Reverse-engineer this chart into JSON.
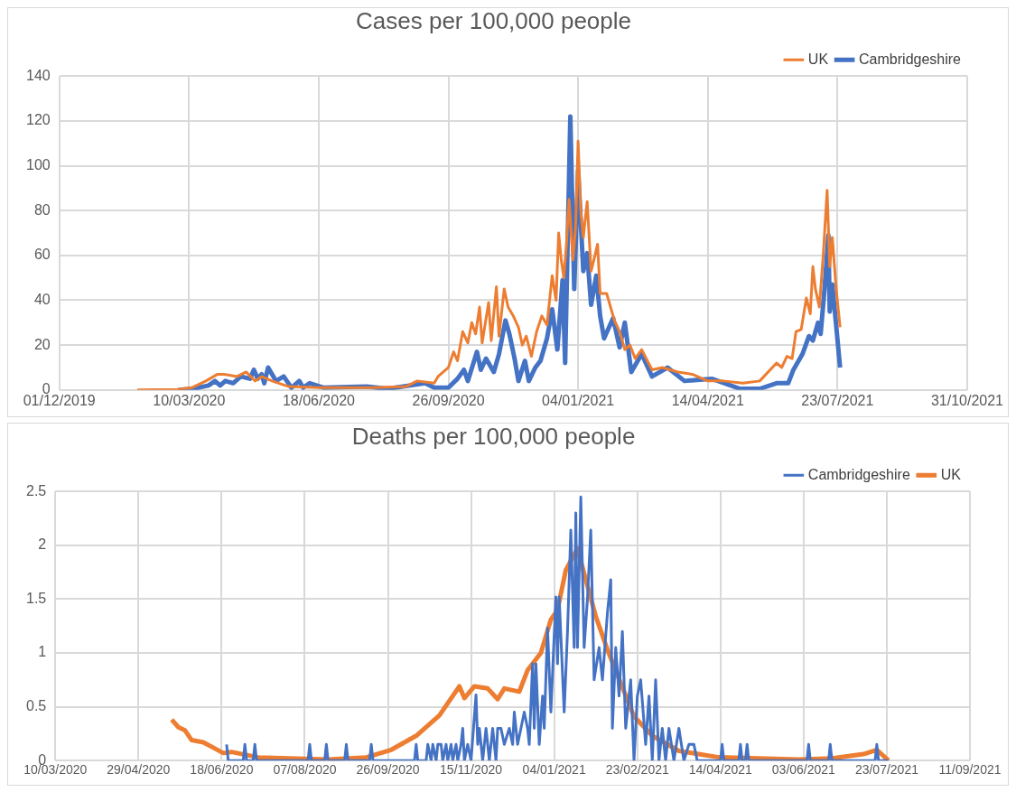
{
  "chart_data": [
    {
      "type": "line",
      "title": "Cases per 100,000 people",
      "legend": "top right",
      "grid": true,
      "marker": "none",
      "line_style": "solid",
      "xlim": [
        "2019-12-01",
        "2021-10-31"
      ],
      "xticks": [
        {
          "value": "2019-12-01",
          "label": "01/12/2019"
        },
        {
          "value": "2020-03-10",
          "label": "10/03/2020"
        },
        {
          "value": "2020-06-18",
          "label": "18/06/2020"
        },
        {
          "value": "2020-09-26",
          "label": "26/09/2020"
        },
        {
          "value": "2021-01-04",
          "label": "04/01/2021"
        },
        {
          "value": "2021-04-14",
          "label": "14/04/2021"
        },
        {
          "value": "2021-07-23",
          "label": "23/07/2021"
        },
        {
          "value": "2021-10-31",
          "label": "31/10/2021"
        }
      ],
      "ylim": [
        0,
        140
      ],
      "yticks": [
        0,
        20,
        40,
        60,
        80,
        100,
        120,
        140
      ],
      "series": [
        {
          "name": "UK",
          "color": "#ed7d31",
          "x": [
            "2020-01-30",
            "2020-03-01",
            "2020-03-12",
            "2020-03-23",
            "2020-04-01",
            "2020-04-06",
            "2020-04-16",
            "2020-04-23",
            "2020-04-30",
            "2020-05-05",
            "2020-05-13",
            "2020-05-26",
            "2020-06-19",
            "2020-07-30",
            "2020-08-24",
            "2020-09-02",
            "2020-09-15",
            "2020-09-18",
            "2020-09-26",
            "2020-09-30",
            "2020-10-03",
            "2020-10-07",
            "2020-10-11",
            "2020-10-14",
            "2020-10-17",
            "2020-10-20",
            "2020-10-22",
            "2020-10-27",
            "2020-10-29",
            "2020-11-02",
            "2020-11-04",
            "2020-11-08",
            "2020-11-11",
            "2020-11-15",
            "2020-11-19",
            "2020-11-22",
            "2020-11-25",
            "2020-11-29",
            "2020-12-03",
            "2020-12-07",
            "2020-12-11",
            "2020-12-15",
            "2020-12-18",
            "2020-12-20",
            "2020-12-22",
            "2020-12-24",
            "2020-12-26",
            "2020-12-28",
            "2020-12-31",
            "2021-01-02",
            "2021-01-04",
            "2021-01-06",
            "2021-01-08",
            "2021-01-11",
            "2021-01-14",
            "2021-01-17",
            "2021-01-19",
            "2021-01-21",
            "2021-01-26",
            "2021-02-01",
            "2021-02-05",
            "2021-02-09",
            "2021-02-13",
            "2021-02-17",
            "2021-02-22",
            "2021-03-02",
            "2021-03-10",
            "2021-03-22",
            "2021-04-02",
            "2021-04-14",
            "2021-04-26",
            "2021-05-11",
            "2021-05-24",
            "2021-06-06",
            "2021-06-10",
            "2021-06-14",
            "2021-06-18",
            "2021-06-21",
            "2021-06-25",
            "2021-06-29",
            "2021-07-02",
            "2021-07-04",
            "2021-07-06",
            "2021-07-09",
            "2021-07-12",
            "2021-07-15",
            "2021-07-17",
            "2021-07-19",
            "2021-07-22",
            "2021-07-25"
          ],
          "values": [
            0,
            0.2,
            1,
            4,
            7,
            7,
            6,
            8,
            4,
            6,
            4,
            1.5,
            1,
            1,
            1.5,
            4,
            3,
            6,
            10,
            17,
            13,
            26,
            21,
            30,
            25,
            37,
            21,
            39,
            22,
            46,
            24,
            45,
            37,
            33,
            28,
            20,
            24,
            15,
            26,
            33,
            29,
            51,
            40,
            70,
            58,
            50,
            65,
            85,
            58,
            72,
            111,
            80,
            68,
            84,
            53,
            60,
            65,
            43,
            43,
            31,
            26,
            18,
            20,
            14,
            18,
            9,
            10,
            8,
            7,
            4,
            4,
            3,
            4,
            12,
            10,
            15,
            14,
            26,
            27,
            41,
            34,
            55,
            45,
            37,
            60,
            89,
            55,
            68,
            45,
            28
          ]
        },
        {
          "name": "Cambridgeshire",
          "color": "#4472c4",
          "x": [
            "2020-03-02",
            "2020-03-13",
            "2020-03-25",
            "2020-03-30",
            "2020-04-03",
            "2020-04-07",
            "2020-04-13",
            "2020-04-19",
            "2020-04-26",
            "2020-04-29",
            "2020-05-02",
            "2020-05-05",
            "2020-05-07",
            "2020-05-10",
            "2020-05-16",
            "2020-05-22",
            "2020-05-28",
            "2020-06-03",
            "2020-06-06",
            "2020-06-11",
            "2020-06-22",
            "2020-07-25",
            "2020-08-10",
            "2020-09-08",
            "2020-09-15",
            "2020-09-26",
            "2020-10-03",
            "2020-10-08",
            "2020-10-11",
            "2020-10-18",
            "2020-10-21",
            "2020-10-25",
            "2020-10-31",
            "2020-11-04",
            "2020-11-09",
            "2020-11-12",
            "2020-11-16",
            "2020-11-19",
            "2020-11-24",
            "2020-11-27",
            "2020-12-02",
            "2020-12-06",
            "2020-12-11",
            "2020-12-15",
            "2020-12-19",
            "2020-12-23",
            "2020-12-25",
            "2020-12-29",
            "2021-01-01",
            "2021-01-04",
            "2021-01-08",
            "2021-01-11",
            "2021-01-14",
            "2021-01-18",
            "2021-01-21",
            "2021-01-24",
            "2021-01-31",
            "2021-02-05",
            "2021-02-09",
            "2021-02-14",
            "2021-02-22",
            "2021-03-02",
            "2021-03-14",
            "2021-03-27",
            "2021-04-17",
            "2021-05-09",
            "2021-05-24",
            "2021-06-06",
            "2021-06-15",
            "2021-06-19",
            "2021-06-26",
            "2021-07-01",
            "2021-07-04",
            "2021-07-08",
            "2021-07-10",
            "2021-07-13",
            "2021-07-16",
            "2021-07-17",
            "2021-07-19",
            "2021-07-25"
          ],
          "values": [
            0,
            0.5,
            2,
            4,
            2,
            4,
            3,
            6,
            5,
            9,
            5,
            7,
            3,
            10,
            4,
            6,
            1,
            4,
            1,
            3,
            1,
            1.5,
            0.5,
            3,
            1,
            1,
            5,
            9,
            4,
            17,
            9,
            14,
            8,
            16,
            31,
            25,
            14,
            4,
            13,
            4,
            10,
            13,
            23,
            36,
            18,
            49,
            12,
            122,
            45,
            98,
            53,
            61,
            38,
            51,
            33,
            23,
            32,
            19,
            30,
            8,
            16,
            6,
            10,
            4,
            5,
            0.5,
            0.5,
            3,
            3,
            9,
            16,
            24,
            22,
            30,
            25,
            45,
            69,
            35,
            47,
            10
          ]
        }
      ]
    },
    {
      "type": "line",
      "title": "Deaths per 100,000 people",
      "legend": "top right",
      "grid": true,
      "marker": "none",
      "line_style": "solid",
      "xlim": [
        "2020-03-10",
        "2021-09-11"
      ],
      "xticks": [
        {
          "value": "2020-03-10",
          "label": "10/03/2020"
        },
        {
          "value": "2020-04-29",
          "label": "29/04/2020"
        },
        {
          "value": "2020-06-18",
          "label": "18/06/2020"
        },
        {
          "value": "2020-08-07",
          "label": "07/08/2020"
        },
        {
          "value": "2020-09-26",
          "label": "26/09/2020"
        },
        {
          "value": "2020-11-15",
          "label": "15/11/2020"
        },
        {
          "value": "2021-01-04",
          "label": "04/01/2021"
        },
        {
          "value": "2021-02-23",
          "label": "23/02/2021"
        },
        {
          "value": "2021-04-14",
          "label": "14/04/2021"
        },
        {
          "value": "2021-06-03",
          "label": "03/06/2021"
        },
        {
          "value": "2021-07-23",
          "label": "23/07/2021"
        },
        {
          "value": "2021-09-11",
          "label": "11/09/2021"
        }
      ],
      "ylim": [
        0,
        2.5
      ],
      "yticks": [
        0,
        0.5,
        1,
        1.5,
        2,
        2.5
      ],
      "series": [
        {
          "name": "Cambridgeshire",
          "color": "#4472c4",
          "x": [
            "2020-06-21",
            "2020-06-22",
            "2020-07-01",
            "2020-07-02",
            "2020-07-03",
            "2020-07-07",
            "2020-07-08",
            "2020-07-09",
            "2020-08-09",
            "2020-08-10",
            "2020-08-11",
            "2020-08-19",
            "2020-08-20",
            "2020-08-21",
            "2020-08-31",
            "2020-09-01",
            "2020-09-02",
            "2020-09-15",
            "2020-09-16",
            "2020-09-17",
            "2020-10-12",
            "2020-10-13",
            "2020-10-14",
            "2020-10-19",
            "2020-10-20",
            "2020-10-22",
            "2020-10-23",
            "2020-10-25",
            "2020-10-26",
            "2020-10-28",
            "2020-10-29",
            "2020-10-31",
            "2020-11-01",
            "2020-11-03",
            "2020-11-04",
            "2020-11-06",
            "2020-11-07",
            "2020-11-09",
            "2020-11-10",
            "2020-11-11",
            "2020-11-13",
            "2020-11-15",
            "2020-11-18",
            "2020-11-19",
            "2020-11-20",
            "2020-11-22",
            "2020-11-24",
            "2020-11-26",
            "2020-11-28",
            "2020-11-30",
            "2020-12-01",
            "2020-12-03",
            "2020-12-05",
            "2020-12-08",
            "2020-12-10",
            "2020-12-11",
            "2020-12-13",
            "2020-12-15",
            "2020-12-17",
            "2020-12-19",
            "2020-12-20",
            "2020-12-22",
            "2020-12-23",
            "2020-12-24",
            "2020-12-26",
            "2020-12-28",
            "2020-12-29",
            "2020-12-31",
            "2021-01-02",
            "2021-01-05",
            "2021-01-06",
            "2021-01-07",
            "2021-01-10",
            "2021-01-12",
            "2021-01-14",
            "2021-01-16",
            "2021-01-17",
            "2021-01-18",
            "2021-01-20",
            "2021-01-22",
            "2021-01-24",
            "2021-01-26",
            "2021-01-28",
            "2021-01-31",
            "2021-02-02",
            "2021-02-05",
            "2021-02-07",
            "2021-02-08",
            "2021-02-10",
            "2021-02-12",
            "2021-02-14",
            "2021-02-16",
            "2021-02-19",
            "2021-02-21",
            "2021-02-23",
            "2021-02-25",
            "2021-02-28",
            "2021-03-02",
            "2021-03-04",
            "2021-03-06",
            "2021-03-08",
            "2021-03-10",
            "2021-03-12",
            "2021-03-14",
            "2021-03-17",
            "2021-03-20",
            "2021-03-23",
            "2021-03-26",
            "2021-03-29",
            "2021-03-31",
            "2021-04-14",
            "2021-04-15",
            "2021-04-16",
            "2021-04-25",
            "2021-04-26",
            "2021-04-27",
            "2021-04-29",
            "2021-04-30",
            "2021-05-01",
            "2021-06-05",
            "2021-06-06",
            "2021-06-07",
            "2021-06-18",
            "2021-06-19",
            "2021-06-20",
            "2021-07-16",
            "2021-07-17",
            "2021-07-18",
            "2021-07-24"
          ],
          "values": [
            0.15,
            0,
            0,
            0.15,
            0,
            0,
            0.15,
            0,
            0,
            0.15,
            0,
            0,
            0.15,
            0,
            0,
            0.15,
            0,
            0,
            0.15,
            0,
            0,
            0.15,
            0,
            0,
            0.15,
            0,
            0.15,
            0,
            0.15,
            0.15,
            0,
            0.15,
            0,
            0.15,
            0,
            0.15,
            0,
            0.15,
            0.3,
            0,
            0.15,
            0,
            0.61,
            0.15,
            0.3,
            0,
            0.3,
            0,
            0.3,
            0,
            0.3,
            0.3,
            0.15,
            0.3,
            0.15,
            0.45,
            0.15,
            0.3,
            0.45,
            0.3,
            0.15,
            0.9,
            0.3,
            0.9,
            0.15,
            0.6,
            0.3,
            1.23,
            0.45,
            1.52,
            0.9,
            1.52,
            0.45,
            1.2,
            2.14,
            1.05,
            2.3,
            1.05,
            2.45,
            1.05,
            1.5,
            2.14,
            0.75,
            1.05,
            0.75,
            1.37,
            1.68,
            0.3,
            1.05,
            0.6,
            1.2,
            0.3,
            0.75,
            0,
            0.6,
            0.75,
            0.15,
            0.6,
            0,
            0.75,
            0,
            0.3,
            0,
            0.3,
            0,
            0.3,
            0,
            0.15,
            0.15,
            0,
            0,
            0.15,
            0,
            0,
            0.15,
            0,
            0,
            0.15,
            0,
            0,
            0.15,
            0,
            0,
            0.15,
            0,
            0,
            0.15,
            0,
            0
          ]
        },
        {
          "name": "UK",
          "color": "#ed7d31",
          "x": [
            "2020-05-19",
            "2020-05-23",
            "2020-05-27",
            "2020-05-31",
            "2020-06-07",
            "2020-06-13",
            "2020-06-19",
            "2020-06-24",
            "2020-07-10",
            "2020-08-21",
            "2020-09-13",
            "2020-09-28",
            "2020-10-13",
            "2020-10-27",
            "2020-11-08",
            "2020-11-11",
            "2020-11-17",
            "2020-11-25",
            "2020-12-01",
            "2020-12-05",
            "2020-12-14",
            "2020-12-19",
            "2020-12-27",
            "2021-01-02",
            "2021-01-06",
            "2021-01-11",
            "2021-01-18",
            "2021-01-23",
            "2021-01-29",
            "2021-02-05",
            "2021-02-13",
            "2021-02-21",
            "2021-03-04",
            "2021-03-20",
            "2021-04-13",
            "2021-05-31",
            "2021-06-20",
            "2021-07-09",
            "2021-07-17",
            "2021-07-24"
          ],
          "values": [
            0.38,
            0.31,
            0.28,
            0.19,
            0.17,
            0.12,
            0.07,
            0.08,
            0.03,
            0.01,
            0.03,
            0.1,
            0.23,
            0.42,
            0.69,
            0.58,
            0.69,
            0.67,
            0.57,
            0.67,
            0.64,
            0.84,
            1.0,
            1.31,
            1.4,
            1.77,
            1.97,
            1.68,
            1.34,
            1.03,
            0.72,
            0.41,
            0.23,
            0.09,
            0.03,
            0.01,
            0.02,
            0.06,
            0.1,
            0
          ]
        }
      ]
    }
  ]
}
